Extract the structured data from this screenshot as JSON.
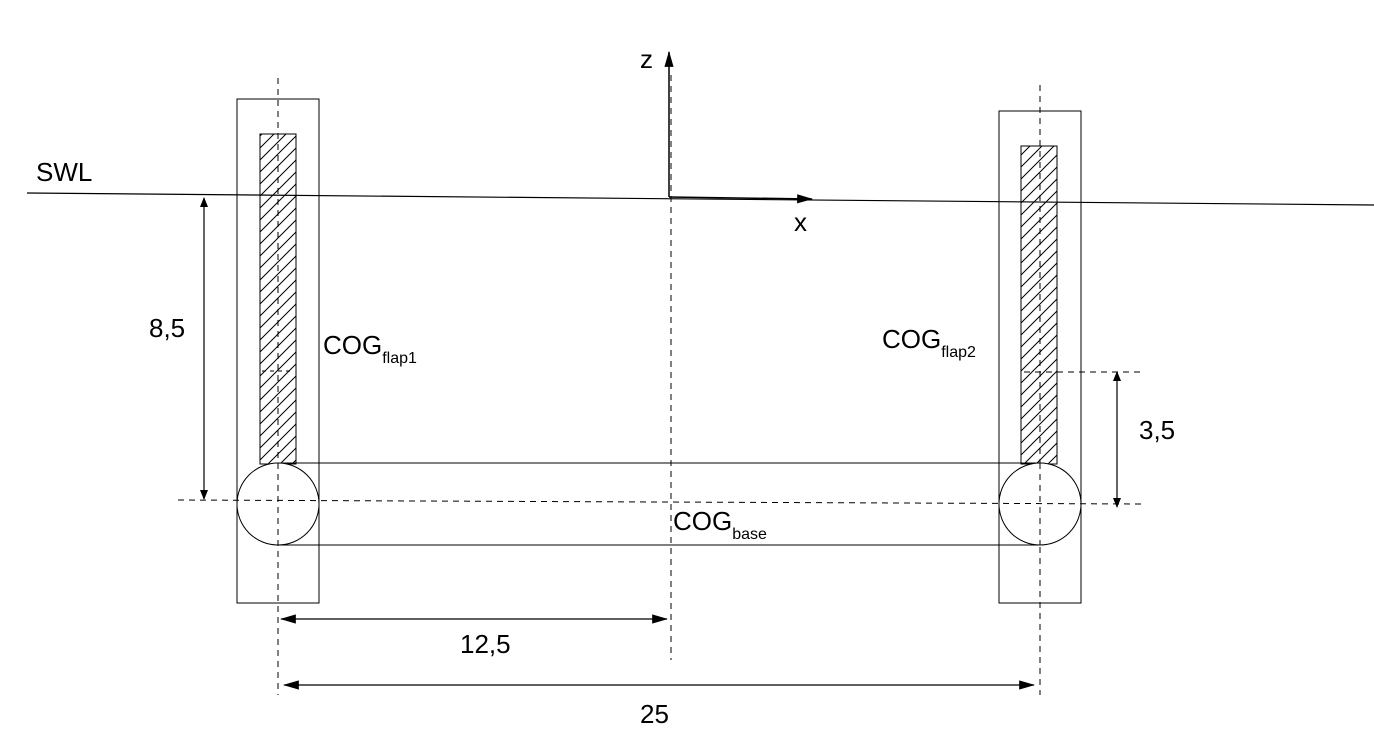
{
  "labels": {
    "swl": "SWL",
    "z_axis": "z",
    "x_axis": "x",
    "cog_flap1_main": "COG",
    "cog_flap1_sub": "flap1",
    "cog_flap2_main": "COG",
    "cog_flap2_sub": "flap2",
    "cog_base_main": "COG",
    "cog_base_sub": "base"
  },
  "dimensions": {
    "depth_left": "8,5",
    "height_right": "3,5",
    "half_span": "12,5",
    "full_span": "25"
  }
}
